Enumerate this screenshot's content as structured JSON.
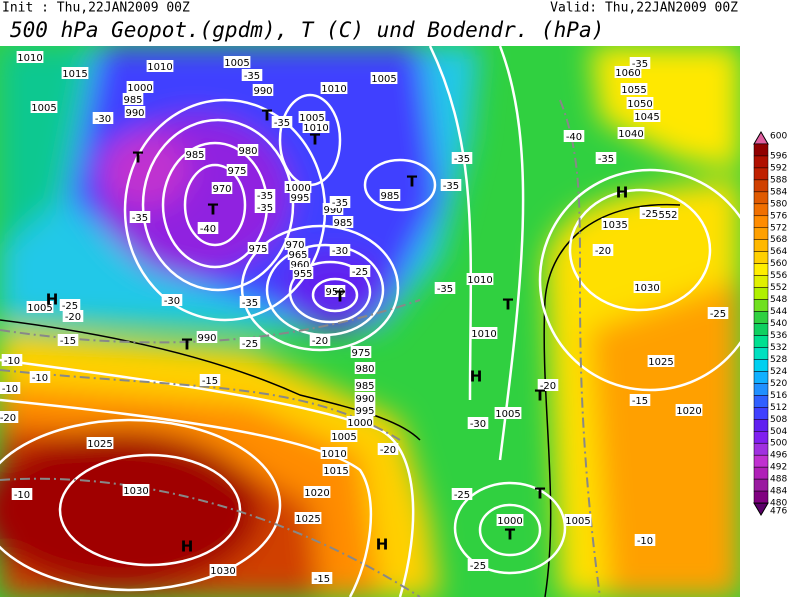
{
  "header": {
    "init": "Init : Thu,22JAN2009 00Z",
    "valid": "Valid: Thu,22JAN2009 00Z",
    "title": "500 hPa Geopot.(gpdm), T (C) und Bodendr. (hPa)"
  },
  "colorbar": {
    "levels": [
      600,
      596,
      592,
      588,
      584,
      580,
      576,
      572,
      568,
      564,
      560,
      556,
      552,
      548,
      544,
      540,
      536,
      532,
      528,
      524,
      520,
      516,
      512,
      508,
      504,
      500,
      496,
      492,
      488,
      484,
      480,
      476
    ],
    "colors": [
      "#e060a0",
      "#900000",
      "#b01000",
      "#c02000",
      "#d04000",
      "#e05a00",
      "#f07000",
      "#ff8c00",
      "#ffa000",
      "#ffb800",
      "#ffd000",
      "#ffee00",
      "#e0f000",
      "#b0f000",
      "#70e020",
      "#30d040",
      "#10d060",
      "#00e090",
      "#00e0c0",
      "#00d0f0",
      "#10b0ff",
      "#2090ff",
      "#3060ff",
      "#4040ff",
      "#6020f0",
      "#8020f0",
      "#a030e0",
      "#c030d0",
      "#b020b8",
      "#9a1aa0",
      "#800080",
      "#5a0068"
    ]
  },
  "map": {
    "isobar_labels": [
      "1015",
      "1010",
      "1005",
      "1005",
      "1010",
      "1000",
      "985",
      "990",
      "1005",
      "990",
      "1005",
      "1010",
      "985",
      "980",
      "975",
      "970",
      "1000",
      "995",
      "990",
      "985",
      "975",
      "970",
      "965",
      "960",
      "955",
      "950",
      "985",
      "1010",
      "1010",
      "1005",
      "975",
      "980",
      "985",
      "990",
      "995",
      "1000",
      "1005",
      "1010",
      "1015",
      "1020",
      "1025",
      "1025",
      "1030",
      "1030",
      "990",
      "1005",
      "1035",
      "1030",
      "1025",
      "1020",
      "1040",
      "1045",
      "1050",
      "1055",
      "1060",
      "1000",
      "1005",
      "1010"
    ],
    "temperature_labels": [
      "-35",
      "-30",
      "-35",
      "-35",
      "-40",
      "-35",
      "-35",
      "-35",
      "-35",
      "-35",
      "-30",
      "-25",
      "-35",
      "-35",
      "-30",
      "-25",
      "-20",
      "-15",
      "-10",
      "-10",
      "-10",
      "-15",
      "-20",
      "-25",
      "-20",
      "-25",
      "-30",
      "-25",
      "-20",
      "-15",
      "-10",
      "-15",
      "-25",
      "-20",
      "-25",
      "-35",
      "-40",
      "-35",
      "-10",
      "-20",
      "552"
    ],
    "pressure_centers": [
      "T",
      "T",
      "T",
      "T",
      "T",
      "H",
      "T",
      "H",
      "T",
      "T",
      "H",
      "T",
      "T",
      "T",
      "H",
      "H"
    ]
  }
}
